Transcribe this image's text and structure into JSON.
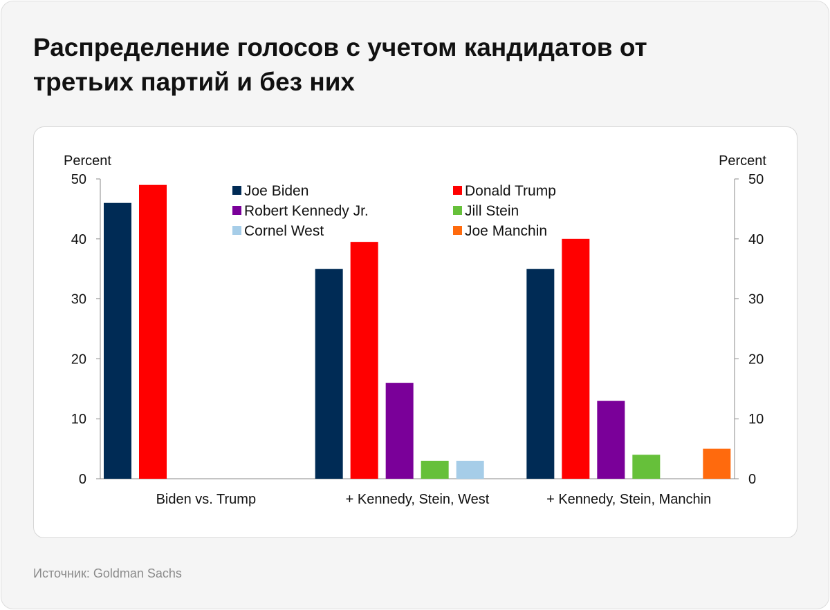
{
  "title": "Распределение голосов с учетом кандидатов от третьих партий и без них",
  "source": "Источник: Goldman Sachs",
  "chart_data": {
    "type": "bar",
    "ylabel_left": "Percent",
    "ylabel_right": "Percent",
    "ylim": [
      0,
      50
    ],
    "yticks": [
      0,
      10,
      20,
      30,
      40,
      50
    ],
    "legend_position": "top-center",
    "categories": [
      "Biden vs. Trump",
      "+ Kennedy, Stein, West",
      "+ Kennedy, Stein, Manchin"
    ],
    "series": [
      {
        "name": "Joe Biden",
        "color": "#002b55",
        "values": [
          46,
          35,
          35
        ]
      },
      {
        "name": "Donald Trump",
        "color": "#ff0000",
        "values": [
          49,
          39.5,
          40
        ]
      },
      {
        "name": "Robert Kennedy Jr.",
        "color": "#7a0099",
        "values": [
          null,
          16,
          13
        ]
      },
      {
        "name": "Jill Stein",
        "color": "#66c03a",
        "values": [
          null,
          3,
          4
        ]
      },
      {
        "name": "Cornel West",
        "color": "#a6cde8",
        "values": [
          null,
          3,
          null
        ]
      },
      {
        "name": "Joe Manchin",
        "color": "#ff6a0d",
        "values": [
          null,
          null,
          5
        ]
      }
    ]
  }
}
